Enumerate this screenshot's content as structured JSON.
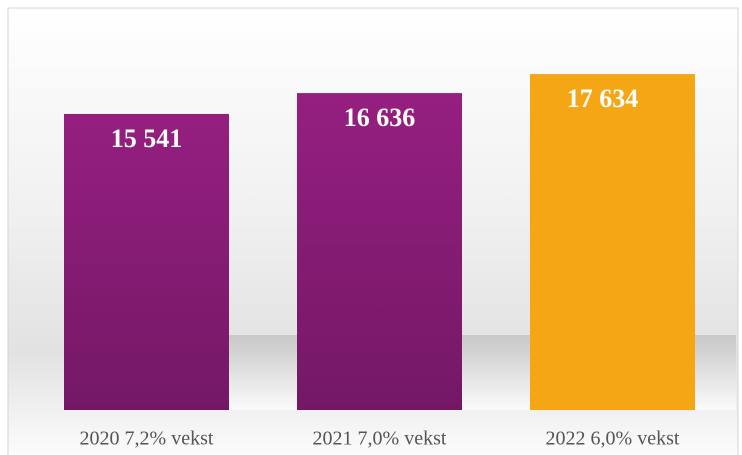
{
  "chart_data": {
    "type": "bar",
    "categories": [
      "2020 7,2% vekst",
      "2021 7,0% vekst",
      "2022 6,0% vekst"
    ],
    "values": [
      15541,
      16636,
      17634
    ],
    "value_labels": [
      "15 541",
      "16 636",
      "17 634"
    ],
    "colors": [
      "#8b1c7a",
      "#8b1c7a",
      "#f5a615"
    ],
    "ylim": [
      0,
      20000
    ]
  }
}
